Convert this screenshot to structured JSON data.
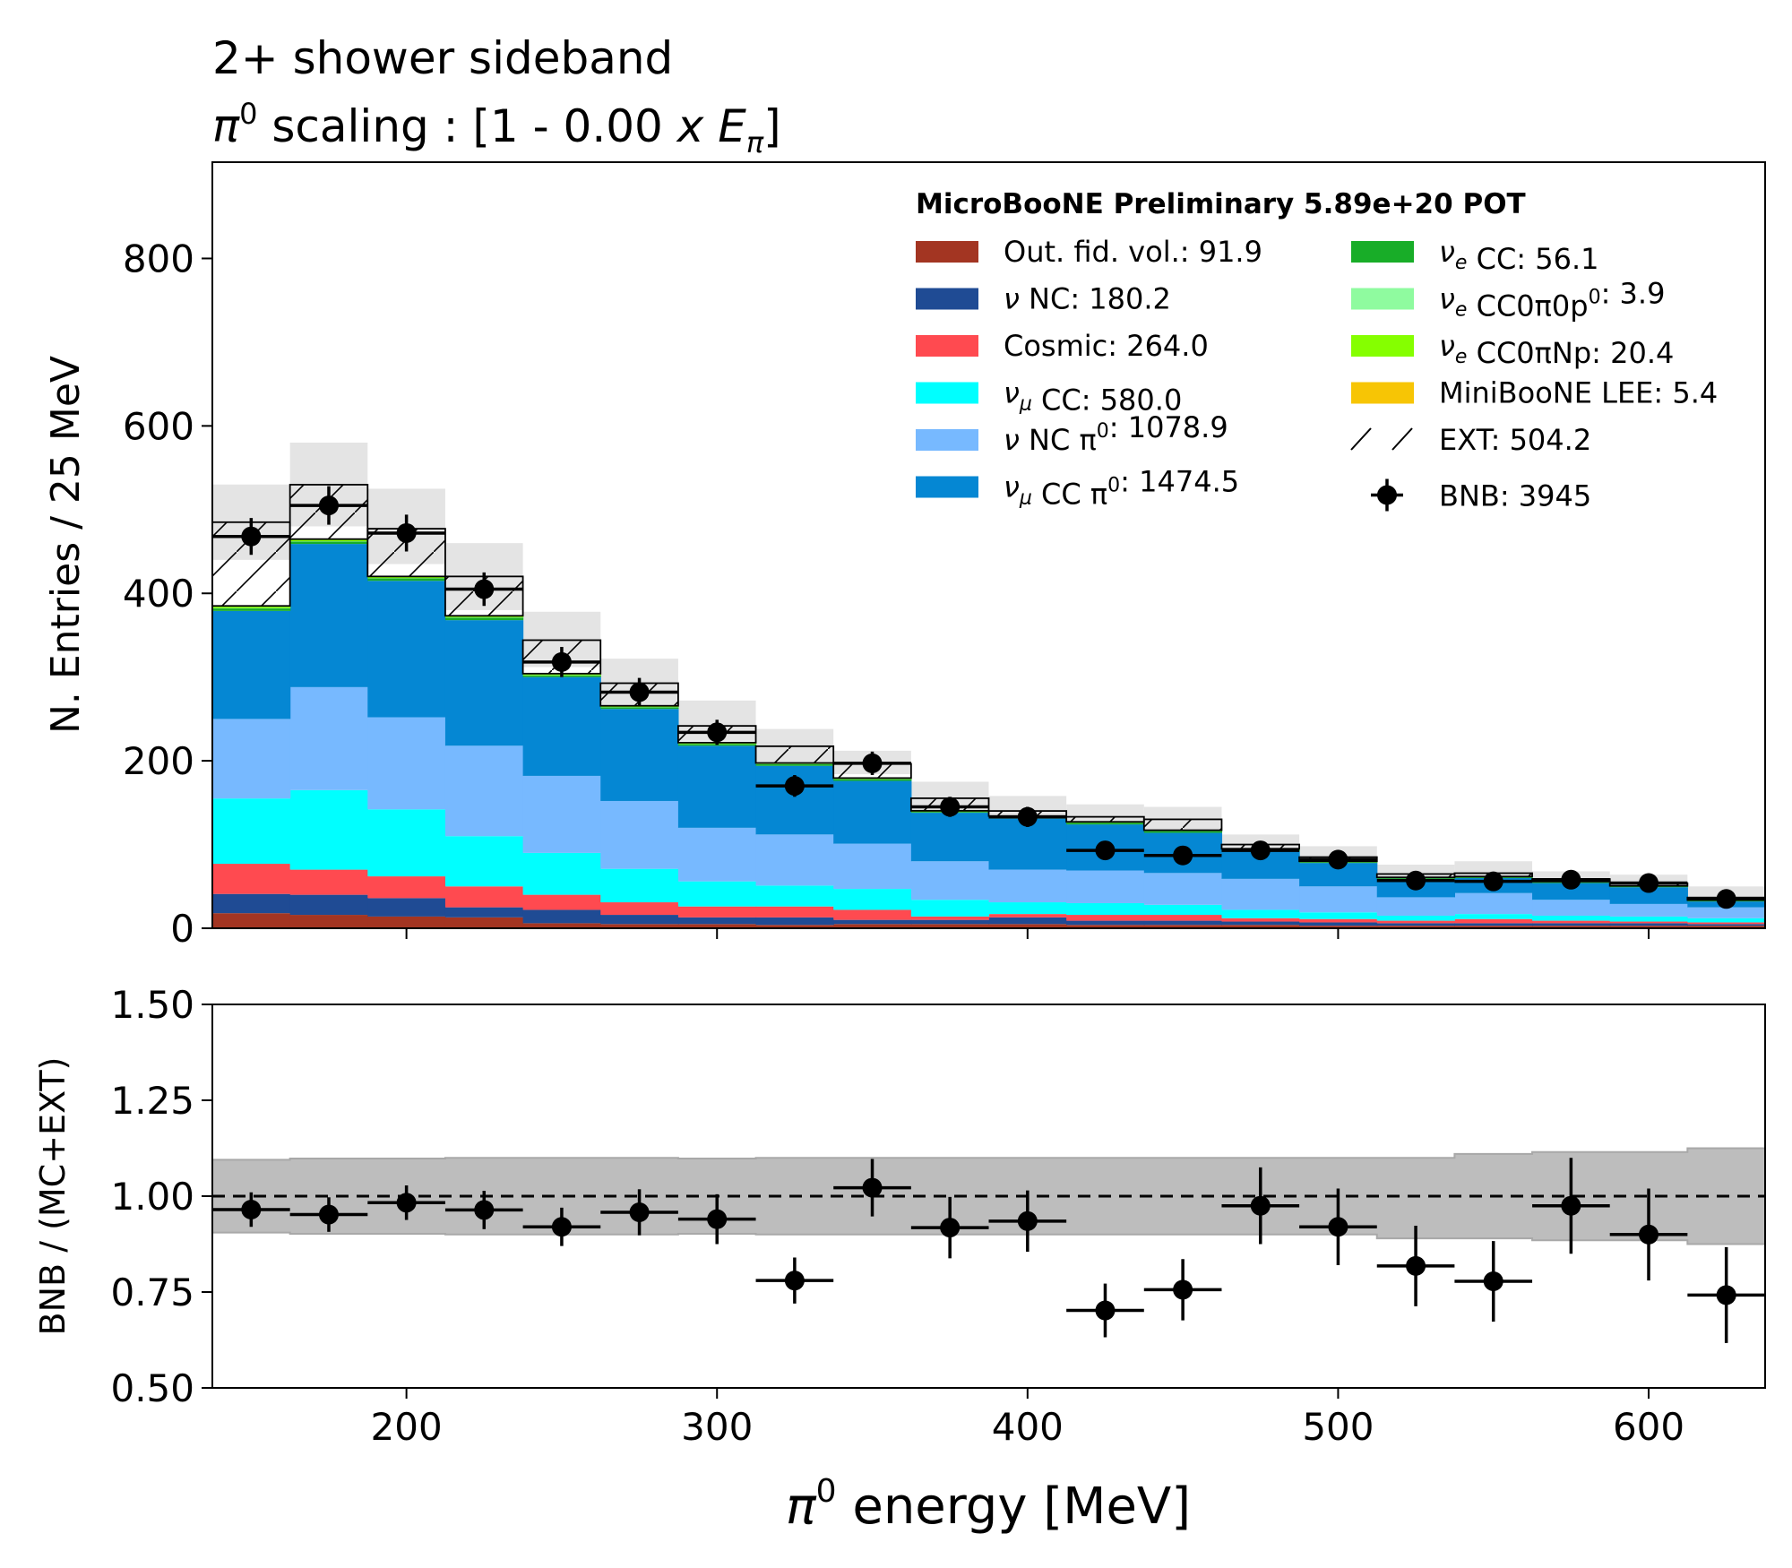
{
  "chart_data": [
    {
      "type": "bar",
      "stacked": true,
      "title_line1": "2+ shower sideband",
      "title_line2_prefix": "π",
      "title_line2_sup": "0",
      "title_line2_mid": " scaling : [1 - 0.00 ",
      "title_line2_x": "x",
      "title_line2_E": "E",
      "title_line2_Esub": "π",
      "title_line2_end": "]",
      "ylabel": "N. Entries / 25 MeV",
      "xlim": [
        137.5,
        637.5
      ],
      "ylim": [
        0,
        915
      ],
      "yticks": [
        0,
        200,
        400,
        600,
        800
      ],
      "grid": false,
      "legend_placement": "top-right",
      "legend_header": "MicroBooNE Preliminary 5.89e+20 POT",
      "bin_edges": [
        137.5,
        162.5,
        187.5,
        212.5,
        237.5,
        262.5,
        287.5,
        312.5,
        337.5,
        362.5,
        387.5,
        412.5,
        437.5,
        462.5,
        487.5,
        512.5,
        537.5,
        562.5,
        587.5,
        612.5,
        637.5
      ],
      "series": [
        {
          "name": "Out. fid. vol.: 91.9",
          "label": "Out. fid. vol.",
          "value_text": "91.9",
          "color": "#a33522",
          "values": [
            18,
            16,
            14,
            13,
            6,
            5,
            5,
            4,
            5,
            5,
            5,
            4,
            4,
            4,
            3,
            3,
            3,
            3,
            3,
            3
          ]
        },
        {
          "name": "ν NC: 180.2",
          "label": "ν NC",
          "value_text": "180.2",
          "color": "#1f4b94",
          "values": [
            23,
            24,
            22,
            12,
            16,
            11,
            8,
            9,
            5,
            5,
            8,
            5,
            5,
            4,
            4,
            3,
            3,
            3,
            3,
            2
          ]
        },
        {
          "name": "Cosmic: 264.0",
          "label": "Cosmic",
          "value_text": "264.0",
          "color": "#ff4a50",
          "values": [
            36,
            30,
            26,
            25,
            18,
            15,
            13,
            13,
            12,
            4,
            4,
            7,
            7,
            4,
            4,
            3,
            5,
            3,
            2,
            2
          ]
        },
        {
          "name": "νμ CC: 580.0",
          "label": "CC",
          "value_text": "580.0",
          "color": "#00ffff",
          "values": [
            78,
            95,
            80,
            60,
            50,
            40,
            30,
            25,
            25,
            20,
            14,
            14,
            12,
            10,
            8,
            6,
            6,
            6,
            6,
            5
          ]
        },
        {
          "name": "ν NC π0: 1078.9",
          "label": "ν NC π",
          "value_text": "1078.9",
          "color": "#77b9ff",
          "values": [
            95,
            123,
            110,
            108,
            92,
            81,
            64,
            61,
            54,
            46,
            39,
            39,
            38,
            37,
            31,
            22,
            25,
            19,
            15,
            13
          ]
        },
        {
          "name": "νμ CC π0: 1474.5",
          "label": "CC π",
          "value_text": "1474.5",
          "color": "#0587d3",
          "values": [
            129,
            171,
            163,
            150,
            118,
            110,
            98,
            82,
            75,
            58,
            61,
            55,
            48,
            33,
            28,
            22,
            18,
            20,
            20,
            7
          ]
        },
        {
          "name": "νe CC: 56.1",
          "label": "CC",
          "value_text": "56.1",
          "color": "#18ad28",
          "values": [
            3,
            3,
            3,
            3,
            2,
            2,
            2,
            2,
            2,
            1,
            2,
            2,
            2,
            2,
            1,
            1,
            1,
            1,
            1,
            1
          ]
        },
        {
          "name": "νe CC0π0p: 3.9",
          "label": "CC0π0p",
          "value_text": "3.9",
          "color": "#8ffb9f",
          "values": [
            0.5,
            0.3,
            0.3,
            0.3,
            0.3,
            0.2,
            0.2,
            0.2,
            0.2,
            0.1,
            0.1,
            0.1,
            0.1,
            0.1,
            0.1,
            0.1,
            0.1,
            0.1,
            0.1,
            0.1
          ]
        },
        {
          "name": "νe CC0πNp: 20.4",
          "label": "CC0πNp",
          "value_text": "20.4",
          "color": "#85ff00",
          "values": [
            2,
            2,
            1.5,
            1.5,
            1.5,
            1.2,
            1.2,
            1,
            1,
            1,
            0.8,
            0.8,
            0.8,
            0.7,
            0.7,
            0.6,
            0.6,
            0.6,
            0.5,
            0.5
          ]
        },
        {
          "name": "MiniBooNE LEE: 5.4",
          "label": "MiniBooNE LEE",
          "value_text": "5.4",
          "color": "#f7c505",
          "values": [
            0.5,
            0.5,
            0.4,
            0.4,
            0.3,
            0.3,
            0.3,
            0.2,
            0.2,
            0.2,
            0.2,
            0.2,
            0.2,
            0.2,
            0.2,
            0.1,
            0.1,
            0.1,
            0.1,
            0.1
          ]
        },
        {
          "name": "EXT: 504.2",
          "label": "EXT",
          "value_text": "504.2",
          "color": "hatch",
          "values": [
            100,
            65,
            57,
            47,
            40,
            27,
            20,
            20,
            17,
            15,
            6,
            6,
            13,
            5,
            5,
            4,
            4,
            3,
            3,
            3
          ]
        }
      ],
      "totals": [
        485,
        530,
        480,
        420,
        345,
        293,
        248,
        218,
        198,
        157,
        140,
        133,
        130,
        97,
        86,
        65,
        68,
        59,
        55,
        38
      ],
      "mc_uncertainty_upper": [
        530,
        580,
        525,
        460,
        378,
        322,
        272,
        238,
        212,
        175,
        158,
        148,
        145,
        112,
        98,
        76,
        80,
        68,
        64,
        50
      ],
      "mc_uncertainty_lower": [
        440,
        480,
        435,
        380,
        312,
        264,
        224,
        198,
        184,
        139,
        122,
        118,
        115,
        82,
        74,
        54,
        56,
        50,
        46,
        26
      ],
      "data": {
        "name": "BNB: 3945",
        "label": "BNB",
        "value_text": "3945",
        "x": [
          150,
          175,
          200,
          225,
          250,
          275,
          300,
          325,
          350,
          375,
          400,
          425,
          450,
          475,
          500,
          525,
          550,
          575,
          600,
          625
        ],
        "y": [
          468,
          505,
          472,
          405,
          318,
          282,
          234,
          170,
          197,
          145,
          133,
          93,
          87,
          93,
          82,
          57,
          56,
          58,
          54,
          35
        ],
        "yerr": [
          22,
          23,
          22,
          20,
          18,
          17,
          15,
          13,
          14,
          12,
          12,
          10,
          9,
          10,
          9,
          8,
          7,
          8,
          7,
          6
        ]
      }
    },
    {
      "type": "scatter",
      "ylabel": "BNB / (MC+EXT)",
      "xlabel_main": " energy [MeV]",
      "xlabel_pi": "π",
      "xlabel_sup": "0",
      "xlim": [
        137.5,
        637.5
      ],
      "ylim": [
        0.5,
        1.5
      ],
      "yticks": [
        "0.50",
        "0.75",
        "1.00",
        "1.25",
        "1.50"
      ],
      "xticks": [
        200,
        300,
        400,
        500,
        600
      ],
      "reference_line": 1.0,
      "band_upper": [
        1.095,
        1.098,
        1.098,
        1.1,
        1.1,
        1.1,
        1.098,
        1.1,
        1.1,
        1.1,
        1.1,
        1.1,
        1.1,
        1.1,
        1.1,
        1.1,
        1.11,
        1.115,
        1.115,
        1.125
      ],
      "band_lower": [
        0.905,
        0.902,
        0.902,
        0.9,
        0.9,
        0.9,
        0.902,
        0.9,
        0.9,
        0.9,
        0.9,
        0.9,
        0.9,
        0.9,
        0.9,
        0.89,
        0.89,
        0.885,
        0.885,
        0.875
      ],
      "x": [
        150,
        175,
        200,
        225,
        250,
        275,
        300,
        325,
        350,
        375,
        400,
        425,
        450,
        475,
        500,
        525,
        550,
        575,
        600,
        625
      ],
      "y": [
        0.965,
        0.952,
        0.983,
        0.964,
        0.92,
        0.958,
        0.94,
        0.78,
        1.022,
        0.918,
        0.935,
        0.702,
        0.756,
        0.975,
        0.92,
        0.818,
        0.778,
        0.975,
        0.9,
        0.742
      ],
      "yerr": [
        0.045,
        0.045,
        0.045,
        0.05,
        0.05,
        0.06,
        0.065,
        0.06,
        0.075,
        0.08,
        0.08,
        0.07,
        0.08,
        0.1,
        0.1,
        0.105,
        0.105,
        0.125,
        0.12,
        0.125
      ]
    }
  ]
}
